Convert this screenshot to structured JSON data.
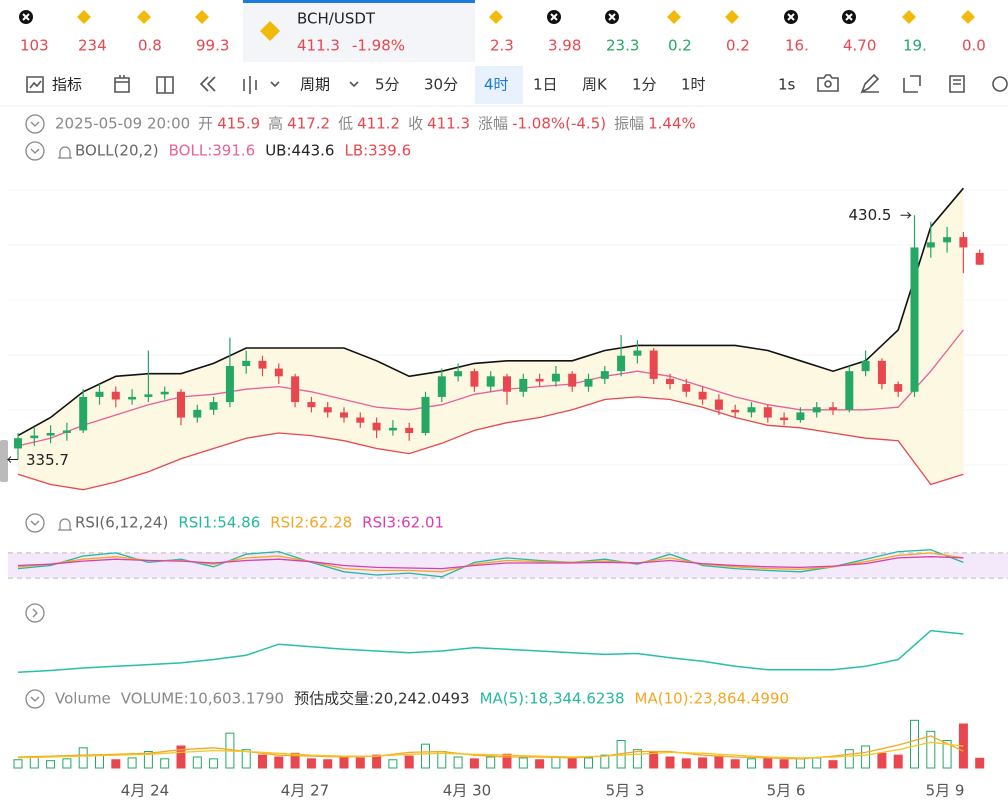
{
  "ticker": {
    "items": [
      {
        "text": "103",
        "color": "#e8474f"
      },
      {
        "text": "234",
        "color": "#e8474f"
      },
      {
        "text": "0.8",
        "color": "#e8474f"
      },
      {
        "text": "99.3",
        "color": "#e8474f"
      },
      {
        "text": "2.3",
        "color": "#e8474f"
      },
      {
        "text": "3.98",
        "color": "#e8474f"
      },
      {
        "text": "23.3",
        "color": "#25a765"
      },
      {
        "text": "0.2",
        "color": "#25a765"
      },
      {
        "text": "0.2",
        "color": "#e8474f"
      },
      {
        "text": "16.",
        "color": "#e8474f"
      },
      {
        "text": "4.70",
        "color": "#e8474f"
      },
      {
        "text": "19.",
        "color": "#25a765"
      },
      {
        "text": "0.0",
        "color": "#e8474f"
      }
    ],
    "active": {
      "pair": "BCH/USDT",
      "price": "411.3",
      "change": "-1.98%"
    }
  },
  "toolbar": {
    "indicator": "指标",
    "period": "周期",
    "intervals": [
      "5分",
      "30分",
      "4时",
      "1日",
      "周K",
      "1分",
      "1时"
    ],
    "active": "4时",
    "speed": "1s"
  },
  "info": {
    "datetime": "2025-05-09 20:00",
    "items": [
      [
        "开",
        "415.9"
      ],
      [
        "高",
        "417.2"
      ],
      [
        "低",
        "411.2"
      ],
      [
        "收",
        "411.3"
      ],
      [
        "涨幅",
        "-1.08%(-4.5)"
      ],
      [
        "振幅",
        "1.44%"
      ]
    ]
  },
  "chart_data": [
    {
      "type": "candlestick",
      "indicator": "BOLL(20,2)",
      "legend": [
        "BOLL:391.6",
        "UB:443.6",
        "LB:339.6"
      ],
      "up_color": "#25a765",
      "down_color": "#e8474f",
      "ylim": [
        320,
        450
      ],
      "candles": [
        [
          340,
          346,
          335.7,
          344
        ],
        [
          344,
          348,
          341,
          345
        ],
        [
          345,
          349,
          342,
          346
        ],
        [
          346,
          350,
          343,
          347
        ],
        [
          347,
          363,
          346,
          360
        ],
        [
          360,
          365,
          357,
          362
        ],
        [
          362,
          364,
          356,
          359
        ],
        [
          359,
          363,
          357,
          360
        ],
        [
          360,
          378,
          358,
          361
        ],
        [
          361,
          364,
          359,
          362
        ],
        [
          362,
          363,
          349,
          352
        ],
        [
          352,
          357,
          350,
          355
        ],
        [
          355,
          360,
          353,
          358
        ],
        [
          358,
          383,
          356,
          372
        ],
        [
          372,
          378,
          369,
          374
        ],
        [
          374,
          376,
          368,
          371
        ],
        [
          371,
          373,
          365,
          368
        ],
        [
          368,
          369,
          356,
          358
        ],
        [
          358,
          360,
          354,
          356
        ],
        [
          356,
          358,
          352,
          354
        ],
        [
          354,
          356,
          350,
          352
        ],
        [
          352,
          354,
          348,
          350
        ],
        [
          350,
          352,
          344,
          347
        ],
        [
          347,
          351,
          345,
          348
        ],
        [
          348,
          350,
          343,
          346
        ],
        [
          346,
          362,
          345,
          360
        ],
        [
          360,
          371,
          358,
          368
        ],
        [
          368,
          373,
          366,
          370
        ],
        [
          370,
          371,
          362,
          364
        ],
        [
          364,
          370,
          362,
          368
        ],
        [
          368,
          369,
          357,
          362
        ],
        [
          362,
          369,
          360,
          367
        ],
        [
          367,
          369,
          364,
          366
        ],
        [
          366,
          372,
          364,
          369
        ],
        [
          369,
          370,
          362,
          364
        ],
        [
          364,
          369,
          362,
          367
        ],
        [
          367,
          372,
          365,
          370
        ],
        [
          370,
          384,
          368,
          376
        ],
        [
          376,
          382,
          373,
          378
        ],
        [
          378,
          379,
          365,
          367
        ],
        [
          367,
          369,
          363,
          365
        ],
        [
          365,
          367,
          360,
          362
        ],
        [
          362,
          364,
          357,
          359
        ],
        [
          359,
          361,
          353,
          355
        ],
        [
          355,
          357,
          352,
          354
        ],
        [
          354,
          358,
          352,
          356
        ],
        [
          356,
          357,
          350,
          352
        ],
        [
          352,
          354,
          349,
          351
        ],
        [
          351,
          356,
          350,
          354
        ],
        [
          354,
          358,
          352,
          356
        ],
        [
          356,
          358,
          353,
          355
        ],
        [
          355,
          372,
          354,
          370
        ],
        [
          370,
          378,
          368,
          374
        ],
        [
          374,
          375,
          363,
          365
        ],
        [
          365,
          366,
          360,
          362
        ],
        [
          362,
          430.5,
          360,
          418
        ],
        [
          418,
          428,
          414,
          420
        ],
        [
          420,
          426,
          416,
          422
        ],
        [
          422,
          424,
          408,
          418
        ],
        [
          415.9,
          417.2,
          411.2,
          411.3
        ]
      ],
      "high_label": {
        "candle": 55
      },
      "low_label": {
        "candle": 0
      },
      "series": [
        {
          "color": "#e8609c",
          "values": [
            341,
            344,
            349,
            353,
            357,
            360,
            361,
            363,
            364,
            362,
            359,
            356,
            355,
            357,
            361,
            363,
            364,
            365,
            368,
            370,
            368,
            364,
            360,
            357,
            355,
            355,
            355,
            356,
            370,
            386
          ]
        },
        {
          "color": "#111111",
          "values": [
            345,
            352,
            362,
            368,
            369,
            369,
            373,
            379,
            379,
            379,
            379,
            374,
            368,
            370,
            373,
            374,
            374,
            374,
            378,
            380,
            380,
            380,
            380,
            378,
            374,
            370,
            374,
            386,
            426,
            441
          ]
        },
        {
          "color": "#e8474f",
          "values": [
            330,
            326,
            324,
            327,
            331,
            336,
            340,
            344,
            346,
            345,
            343,
            340,
            338,
            342,
            347,
            350,
            352,
            355,
            359,
            360,
            359,
            356,
            352,
            349,
            348,
            346,
            344,
            343,
            326,
            330
          ]
        }
      ]
    },
    {
      "type": "line",
      "indicator": "RSI(6,12,24)",
      "legend": [
        "RSI1:54.86",
        "RSI2:62.28",
        "RSI3:62.01"
      ],
      "ylim": [
        0,
        100
      ],
      "hlines": [
        70,
        30
      ],
      "series": [
        {
          "color": "#25b8a0",
          "values": [
            45,
            50,
            65,
            70,
            55,
            60,
            48,
            68,
            72,
            55,
            40,
            35,
            38,
            32,
            55,
            62,
            58,
            55,
            60,
            52,
            68,
            50,
            45,
            42,
            40,
            48,
            60,
            72,
            75,
            55
          ]
        },
        {
          "color": "#f5a623",
          "values": [
            48,
            52,
            60,
            64,
            58,
            58,
            52,
            62,
            65,
            56,
            45,
            42,
            42,
            40,
            52,
            58,
            56,
            55,
            57,
            54,
            62,
            52,
            48,
            45,
            44,
            48,
            56,
            66,
            70,
            62
          ]
        },
        {
          "color": "#d63fb0",
          "values": [
            50,
            52,
            57,
            60,
            58,
            57,
            54,
            58,
            60,
            56,
            50,
            47,
            46,
            45,
            50,
            54,
            54,
            54,
            55,
            54,
            58,
            53,
            50,
            48,
            47,
            49,
            53,
            62,
            64,
            62
          ]
        }
      ]
    },
    {
      "type": "line",
      "ylim": [
        0,
        100
      ],
      "series": [
        {
          "color": "#25c0a5",
          "values": [
            15,
            17,
            20,
            22,
            24,
            26,
            30,
            35,
            48,
            45,
            42,
            40,
            38,
            40,
            44,
            42,
            40,
            38,
            36,
            37,
            32,
            28,
            22,
            18,
            18,
            18,
            22,
            30,
            64,
            60
          ]
        }
      ]
    },
    {
      "type": "bar",
      "indicator": "Volume",
      "legend": [
        "VOLUME:10,603.1790",
        "预估成交量:20,242.0493",
        "MA(5):18,344.6238",
        "MA(10):23,864.4990"
      ],
      "ylim": [
        0,
        60000
      ],
      "values": [
        9000,
        12000,
        8000,
        10000,
        22000,
        14000,
        9000,
        11000,
        18000,
        10000,
        24000,
        12000,
        10000,
        38000,
        20000,
        14000,
        12000,
        16000,
        10000,
        9000,
        12000,
        11000,
        14000,
        9000,
        13000,
        26000,
        18000,
        12000,
        10000,
        12000,
        15000,
        11000,
        9000,
        12000,
        10000,
        11000,
        14000,
        30000,
        20000,
        18000,
        12000,
        10000,
        11000,
        13000,
        9000,
        10000,
        12000,
        9000,
        10000,
        11000,
        8000,
        20000,
        24000,
        16000,
        14000,
        52000,
        40000,
        30000,
        48000,
        10603.179
      ],
      "series": [
        {
          "color": "#f5a623",
          "values": [
            12000,
            13000,
            14000,
            15000,
            16000,
            20000,
            22000,
            18000,
            14000,
            13000,
            12000,
            13000,
            17000,
            18000,
            14000,
            12000,
            12000,
            11000,
            13000,
            18000,
            18000,
            14000,
            12000,
            11000,
            10000,
            13000,
            17000,
            25000,
            35000,
            18345
          ]
        },
        {
          "color": "#f5c623",
          "values": [
            11000,
            12000,
            13000,
            14000,
            15000,
            17000,
            19000,
            18000,
            16000,
            14000,
            13000,
            13000,
            15000,
            16000,
            15000,
            14000,
            13000,
            12000,
            13000,
            15000,
            17000,
            16000,
            14000,
            12000,
            11000,
            12000,
            14000,
            20000,
            28000,
            23864
          ]
        }
      ]
    }
  ],
  "x_labels": [
    "4月 24",
    "4月 27",
    "4月 30",
    "5月 3",
    "5月 6",
    "5月 9"
  ]
}
